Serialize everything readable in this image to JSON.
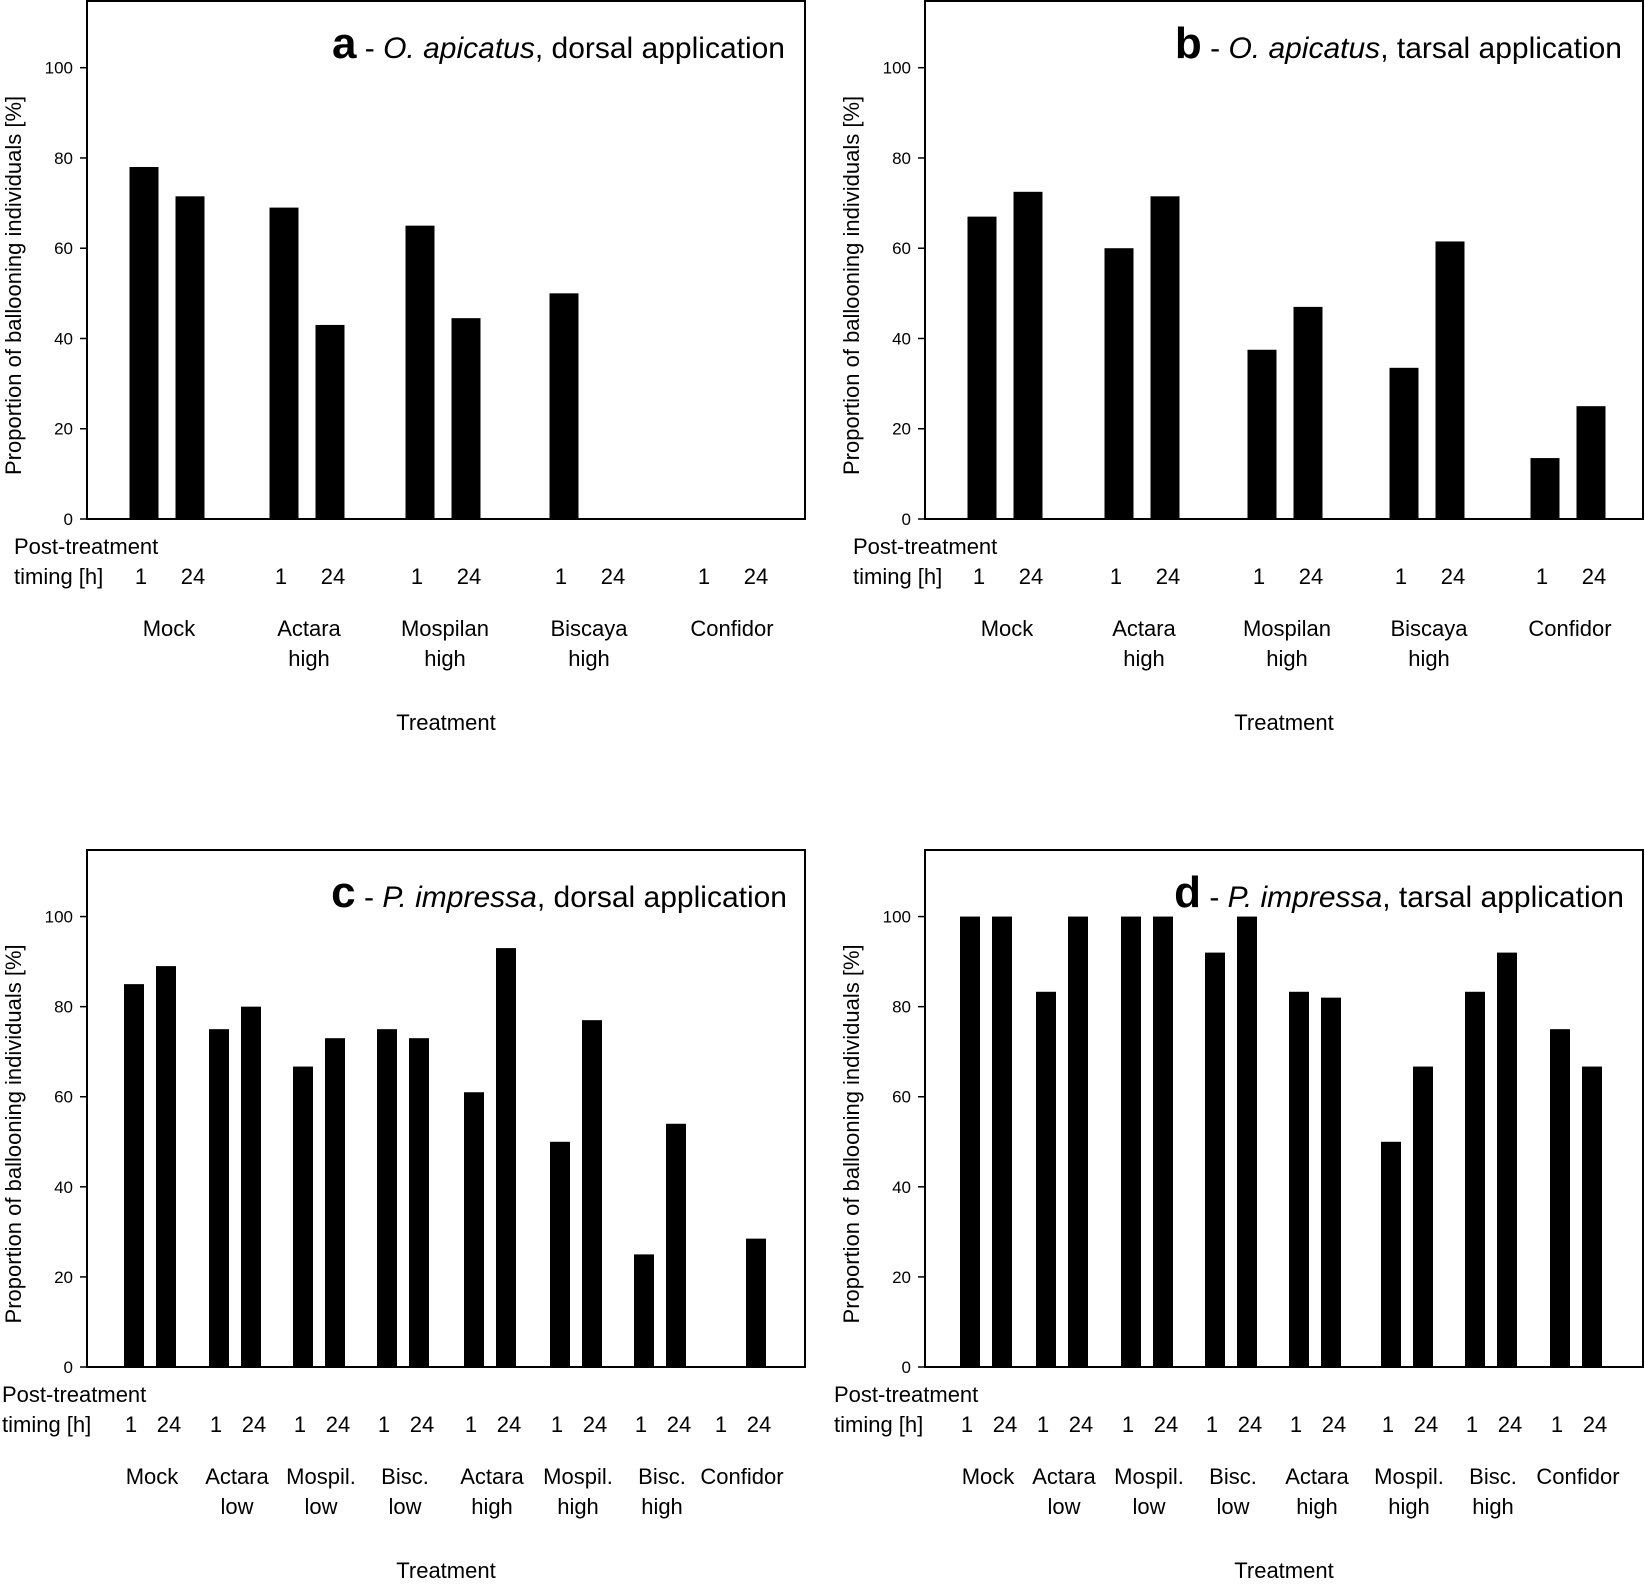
{
  "chart_data": [
    {
      "type": "bar",
      "panel": "a",
      "title_letter": "a",
      "title_sep": " - ",
      "title_species": "O. apicatus",
      "title_rest": ", dorsal application",
      "ylabel": "Proportion of ballooning individuals [%]",
      "xlabel": "Treatment",
      "ylim": [
        0,
        115
      ],
      "yticks": [
        0,
        20,
        40,
        60,
        80,
        100
      ],
      "timing_label_line1": "Post-treatment",
      "timing_label_line2": "timing [h]",
      "timings": [
        "1",
        "24"
      ],
      "categories": [
        [
          "Mock"
        ],
        [
          "Actara",
          "high"
        ],
        [
          "Mospilan",
          "high"
        ],
        [
          "Biscaya",
          "high"
        ],
        [
          "Confidor"
        ]
      ],
      "series": [
        {
          "name": "1",
          "values": [
            78,
            69,
            65,
            50,
            0
          ]
        },
        {
          "name": "24",
          "values": [
            71.5,
            43,
            44.5,
            0,
            0
          ]
        }
      ]
    },
    {
      "type": "bar",
      "panel": "b",
      "title_letter": "b",
      "title_sep": " - ",
      "title_species": "O. apicatus",
      "title_rest": ", tarsal application",
      "ylabel": "Proportion of ballooning individuals [%]",
      "xlabel": "Treatment",
      "ylim": [
        0,
        115
      ],
      "yticks": [
        0,
        20,
        40,
        60,
        80,
        100
      ],
      "timing_label_line1": "Post-treatment",
      "timing_label_line2": "timing [h]",
      "timings": [
        "1",
        "24"
      ],
      "categories": [
        [
          "Mock"
        ],
        [
          "Actara",
          "high"
        ],
        [
          "Mospilan",
          "high"
        ],
        [
          "Biscaya",
          "high"
        ],
        [
          "Confidor"
        ]
      ],
      "series": [
        {
          "name": "1",
          "values": [
            67,
            60,
            37.5,
            33.5,
            13.5
          ]
        },
        {
          "name": "24",
          "values": [
            72.5,
            71.5,
            47,
            61.5,
            25
          ]
        }
      ]
    },
    {
      "type": "bar",
      "panel": "c",
      "title_letter": "c",
      "title_sep": " - ",
      "title_species": "P. impressa",
      "title_rest": ", dorsal application",
      "ylabel": "Proportion of ballooning individuals [%]",
      "xlabel": "Treatment",
      "ylim": [
        0,
        115
      ],
      "yticks": [
        0,
        20,
        40,
        60,
        80,
        100
      ],
      "timing_label_line1": "Post-treatment",
      "timing_label_line2": "timing [h]",
      "timings": [
        "1",
        "24"
      ],
      "categories": [
        [
          "Mock"
        ],
        [
          "Actara",
          "low"
        ],
        [
          "Mospil.",
          "low"
        ],
        [
          "Bisc.",
          "low"
        ],
        [
          "Actara",
          "high"
        ],
        [
          "Mospil.",
          "high"
        ],
        [
          "Bisc.",
          "high"
        ],
        [
          "Confidor"
        ]
      ],
      "series": [
        {
          "name": "1",
          "values": [
            85,
            75,
            66.7,
            75,
            61,
            50,
            25,
            0
          ]
        },
        {
          "name": "24",
          "values": [
            89,
            80,
            73,
            73,
            93,
            77,
            54,
            28.5
          ]
        }
      ]
    },
    {
      "type": "bar",
      "panel": "d",
      "title_letter": "d",
      "title_sep": " - ",
      "title_species": "P. impressa",
      "title_rest": ", tarsal application",
      "ylabel": "Proportion of ballooning individuals [%]",
      "xlabel": "Treatment",
      "ylim": [
        0,
        115
      ],
      "yticks": [
        0,
        20,
        40,
        60,
        80,
        100
      ],
      "timing_label_line1": "Post-treatment",
      "timing_label_line2": "timing [h]",
      "timings": [
        "1",
        "24"
      ],
      "categories": [
        [
          "Mock"
        ],
        [
          "Actara",
          "low"
        ],
        [
          "Mospil.",
          "low"
        ],
        [
          "Bisc.",
          "low"
        ],
        [
          "Actara",
          "high"
        ],
        [
          "Mospil.",
          "high"
        ],
        [
          "Bisc.",
          "high"
        ],
        [
          "Confidor"
        ]
      ],
      "series": [
        {
          "name": "1",
          "values": [
            100,
            83.3,
            100,
            92,
            83.3,
            50,
            83.3,
            75
          ]
        },
        {
          "name": "24",
          "values": [
            100,
            100,
            100,
            100,
            82,
            66.7,
            92,
            66.7
          ]
        }
      ]
    }
  ]
}
